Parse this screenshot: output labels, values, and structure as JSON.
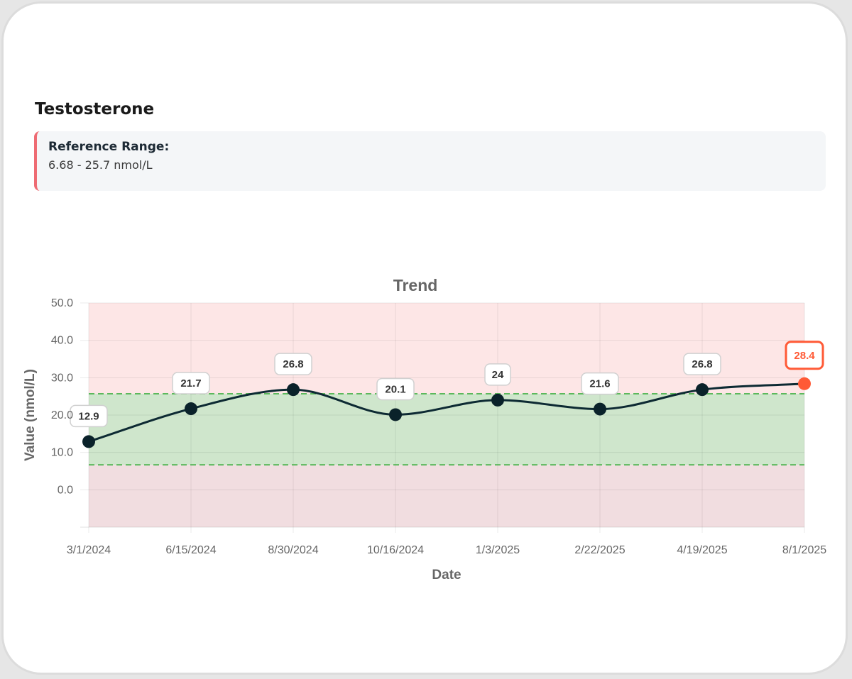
{
  "card": {
    "title": "Testosterone",
    "reference": {
      "label": "Reference Range:",
      "value": "6.68 - 25.7 nmol/L"
    }
  },
  "colors": {
    "line": "#0d2a33",
    "point": "#0a222a",
    "highlight": "#ff5a36",
    "normal_band": "#cfe6cc",
    "out_band_high": "#fde6e6",
    "out_band_low": "#f1dde0",
    "band_border": "#5cb85c",
    "ref_accent": "#ee6b73"
  },
  "chart_data": {
    "type": "line",
    "title": "Trend",
    "xlabel": "Date",
    "ylabel": "Value (nmol/L)",
    "ylim": [
      -10,
      50
    ],
    "yticks": [
      0,
      10,
      20,
      30,
      40,
      50
    ],
    "ytick_labels": [
      "0.0",
      "10.0",
      "20.0",
      "30.0",
      "40.0",
      "50.0"
    ],
    "categories": [
      "3/1/2024",
      "6/15/2024",
      "8/30/2024",
      "10/16/2024",
      "1/3/2025",
      "2/22/2025",
      "4/19/2025",
      "8/1/2025"
    ],
    "values": [
      12.9,
      21.7,
      26.8,
      20.1,
      24,
      21.6,
      26.8,
      28.4
    ],
    "data_labels": [
      "12.9",
      "21.7",
      "26.8",
      "20.1",
      "24",
      "21.6",
      "26.8",
      "28.4"
    ],
    "highlight_index": 7,
    "reference_range": [
      6.68,
      25.7
    ],
    "grid": true
  }
}
